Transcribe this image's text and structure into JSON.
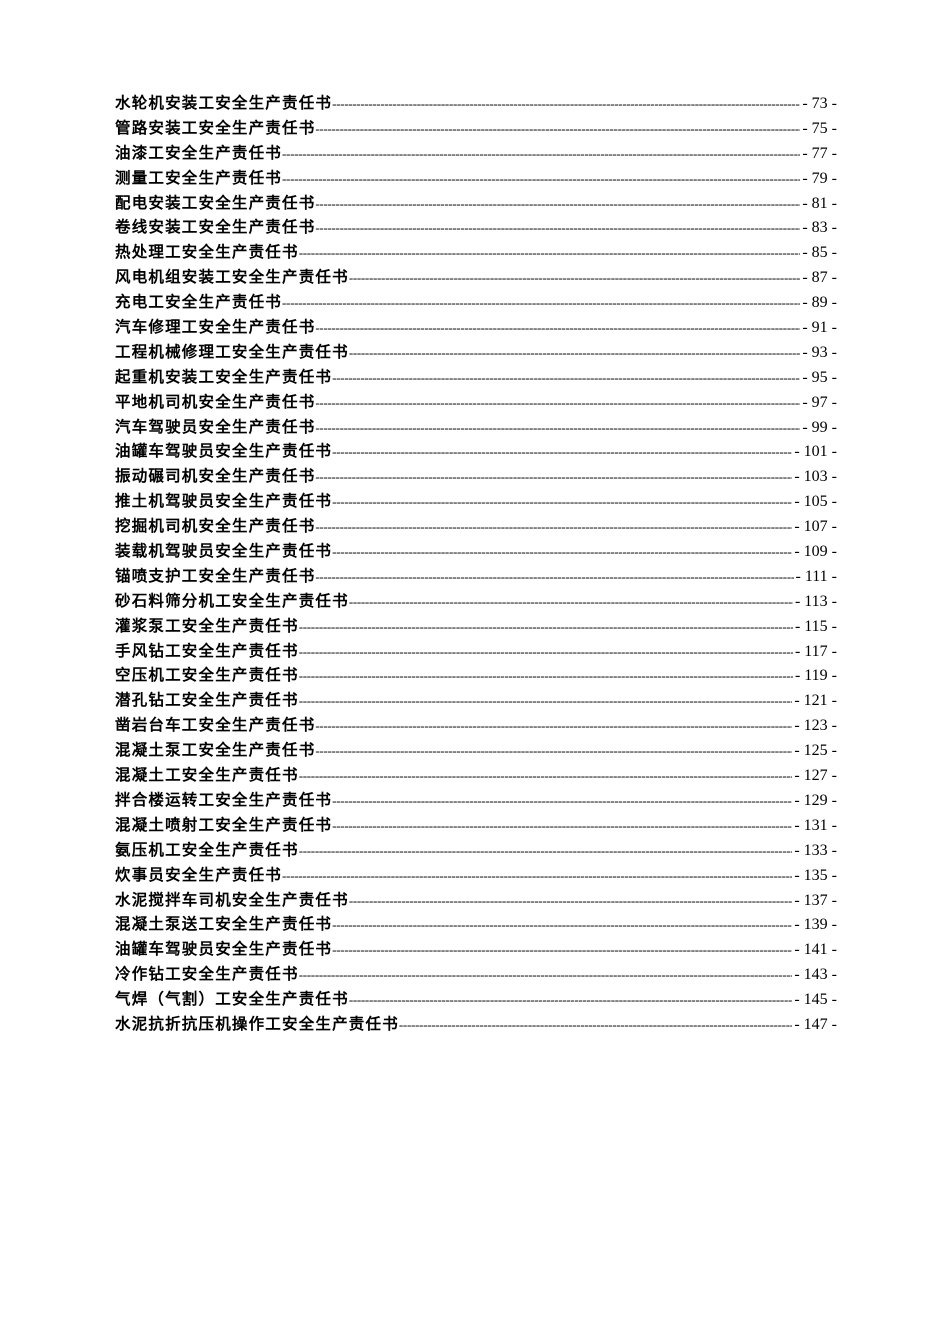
{
  "toc": [
    {
      "title": "水轮机安装工安全生产责任书",
      "page": "- 73 -"
    },
    {
      "title": "管路安装工安全生产责任书",
      "page": "- 75 -"
    },
    {
      "title": "油漆工安全生产责任书",
      "page": "- 77 -"
    },
    {
      "title": "测量工安全生产责任书",
      "page": "- 79 -"
    },
    {
      "title": "配电安装工安全生产责任书",
      "page": "- 81 -"
    },
    {
      "title": "卷线安装工安全生产责任书",
      "page": "- 83 -"
    },
    {
      "title": "热处理工安全生产责任书",
      "page": "- 85 -"
    },
    {
      "title": "风电机组安装工安全生产责任书",
      "page": "- 87 -"
    },
    {
      "title": "充电工安全生产责任书",
      "page": "- 89 -"
    },
    {
      "title": "汽车修理工安全生产责任书",
      "page": "- 91 -"
    },
    {
      "title": "工程机械修理工安全生产责任书",
      "page": "- 93 -"
    },
    {
      "title": "起重机安装工安全生产责任书",
      "page": "- 95 -"
    },
    {
      "title": "平地机司机安全生产责任书",
      "page": "- 97 -"
    },
    {
      "title": "汽车驾驶员安全生产责任书",
      "page": "- 99 -"
    },
    {
      "title": "油罐车驾驶员安全生产责任书",
      "page": "- 101 -"
    },
    {
      "title": "振动碾司机安全生产责任书",
      "page": "- 103 -"
    },
    {
      "title": "推土机驾驶员安全生产责任书",
      "page": "- 105 -"
    },
    {
      "title": "挖掘机司机安全生产责任书",
      "page": "- 107 -"
    },
    {
      "title": "装载机驾驶员安全生产责任书",
      "page": "- 109 -"
    },
    {
      "title": "锚喷支护工安全生产责任书",
      "page": "- 111 -"
    },
    {
      "title": "砂石料筛分机工安全生产责任书",
      "page": "- 113 -"
    },
    {
      "title": "灌浆泵工安全生产责任书",
      "page": "- 115 -"
    },
    {
      "title": "手风钻工安全生产责任书",
      "page": "- 117 -"
    },
    {
      "title": "空压机工安全生产责任书",
      "page": "- 119 -"
    },
    {
      "title": "潜孔钻工安全生产责任书",
      "page": "- 121 -"
    },
    {
      "title": "凿岩台车工安全生产责任书",
      "page": "- 123 -"
    },
    {
      "title": "混凝土泵工安全生产责任书",
      "page": "- 125 -"
    },
    {
      "title": "混凝土工安全生产责任书",
      "page": "- 127 -"
    },
    {
      "title": "拌合楼运转工安全生产责任书",
      "page": "- 129 -"
    },
    {
      "title": "混凝土喷射工安全生产责任书",
      "page": "- 131 -"
    },
    {
      "title": "氨压机工安全生产责任书",
      "page": "- 133 -"
    },
    {
      "title": "炊事员安全生产责任书",
      "page": "- 135 -"
    },
    {
      "title": "水泥搅拌车司机安全生产责任书",
      "page": "- 137 -"
    },
    {
      "title": "混凝土泵送工安全生产责任书",
      "page": "- 139 -"
    },
    {
      "title": "油罐车驾驶员安全生产责任书",
      "page": "- 141 -"
    },
    {
      "title": "冷作钻工安全生产责任书",
      "page": "- 143 -"
    },
    {
      "title": "气焊（气割）工安全生产责任书",
      "page": "- 145 -"
    },
    {
      "title": "水泥抗折抗压机操作工安全生产责任书",
      "page": "- 147 -"
    }
  ]
}
